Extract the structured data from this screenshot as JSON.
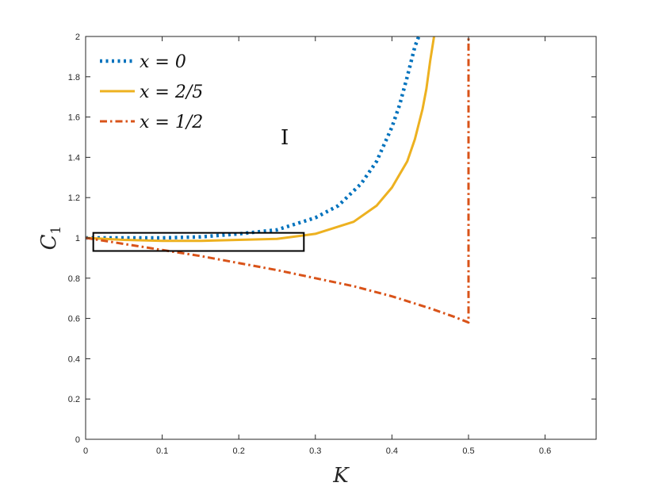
{
  "chart_data": {
    "type": "line",
    "xlabel": "K",
    "ylabel": "C",
    "ylabel_subscript": "1",
    "xlim": [
      0,
      0.6667
    ],
    "ylim": [
      0,
      2
    ],
    "x_ticks": [
      0,
      0.1,
      0.2,
      0.3,
      0.4,
      0.5,
      0.6
    ],
    "x_tick_labels": [
      "0",
      "0.1",
      "0.2",
      "0.3",
      "0.4",
      "0.5",
      "0.6"
    ],
    "y_ticks": [
      0,
      0.2,
      0.4,
      0.6,
      0.8,
      1,
      1.2,
      1.4,
      1.6,
      1.8,
      2
    ],
    "y_tick_labels": [
      "0",
      "0.2",
      "0.4",
      "0.6",
      "0.8",
      "1",
      "1.2",
      "1.4",
      "1.6",
      "1.8",
      "2"
    ],
    "grid": false,
    "legend_position": "top-left",
    "annotation": "I",
    "annotation_at": {
      "x": 0.26,
      "y": 1.5
    },
    "highlight_box": {
      "x0": 0.01,
      "x1": 0.285,
      "y0": 0.935,
      "y1": 1.025
    },
    "series": [
      {
        "name": "x = 0",
        "color": "#0072BD",
        "style": "dotted",
        "x": [
          0,
          0.05,
          0.1,
          0.15,
          0.2,
          0.25,
          0.3,
          0.33,
          0.36,
          0.38,
          0.4,
          0.41,
          0.42,
          0.43,
          0.435
        ],
        "y": [
          1.0,
          1.0,
          1.0,
          1.005,
          1.02,
          1.04,
          1.1,
          1.16,
          1.27,
          1.38,
          1.55,
          1.66,
          1.8,
          1.95,
          2.0
        ]
      },
      {
        "name": "x = 2/5",
        "color": "#EDB120",
        "style": "solid",
        "x": [
          0,
          0.05,
          0.1,
          0.15,
          0.2,
          0.25,
          0.3,
          0.35,
          0.38,
          0.4,
          0.42,
          0.43,
          0.44,
          0.445,
          0.45,
          0.455
        ],
        "y": [
          1.0,
          0.99,
          0.985,
          0.985,
          0.99,
          0.995,
          1.02,
          1.08,
          1.16,
          1.25,
          1.38,
          1.49,
          1.64,
          1.74,
          1.88,
          2.0
        ]
      },
      {
        "name": "x = 1/2",
        "color": "#D95319",
        "style": "dashdot",
        "x": [
          0,
          0.05,
          0.1,
          0.15,
          0.2,
          0.25,
          0.3,
          0.35,
          0.4,
          0.45,
          0.48,
          0.5,
          0.5
        ],
        "y": [
          1.0,
          0.97,
          0.94,
          0.91,
          0.875,
          0.84,
          0.8,
          0.76,
          0.71,
          0.65,
          0.61,
          0.58,
          2.0
        ]
      }
    ]
  }
}
